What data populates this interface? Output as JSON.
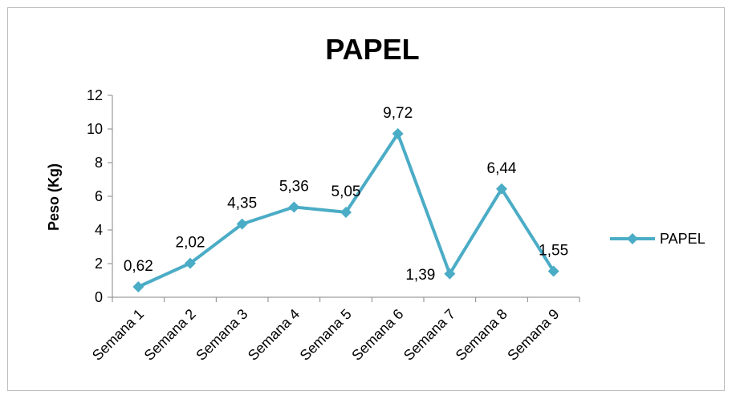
{
  "chart_data": {
    "type": "line",
    "title": "PAPEL",
    "xlabel": "",
    "ylabel": "Peso (Kg)",
    "ylim": [
      0,
      12
    ],
    "yticks": [
      "0",
      "2",
      "4",
      "6",
      "8",
      "10",
      "12"
    ],
    "categories": [
      "Semana 1",
      "Semana 2",
      "Semana 3",
      "Semana 4",
      "Semana 5",
      "Semana 6",
      "Semana 7",
      "Semana 8",
      "Semana 9"
    ],
    "series": [
      {
        "name": "PAPEL",
        "values": [
          0.62,
          2.02,
          4.35,
          5.36,
          5.05,
          9.72,
          1.39,
          6.44,
          1.55
        ],
        "labels": [
          "0,62",
          "2,02",
          "4,35",
          "5,36",
          "5,05",
          "9,72",
          "1,39",
          "6,44",
          "1,55"
        ],
        "label_positions": [
          "above",
          "above",
          "above",
          "above",
          "above",
          "above",
          "left",
          "above",
          "above"
        ]
      }
    ],
    "color": "#4bacc6",
    "grid": false,
    "legend_position": "right",
    "marker": "diamond"
  }
}
